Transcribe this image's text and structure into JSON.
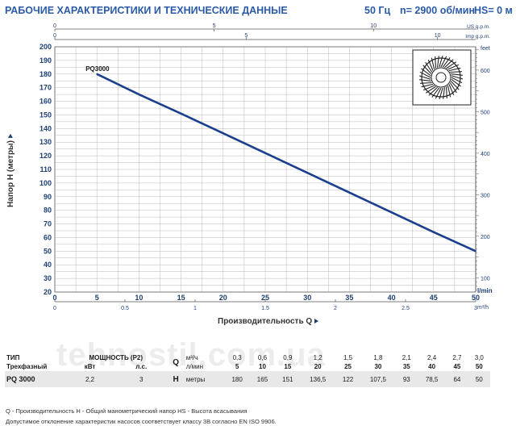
{
  "header": {
    "title": "РАБОЧИЕ ХАРАКТЕРИСТИКИ И ТЕХНИЧЕСКИЕ ДАННЫЕ",
    "freq": "50 Гц",
    "speed": "n= 2900 об/мин",
    "hs": "HS= 0 м"
  },
  "chart_data": {
    "type": "line",
    "series": [
      {
        "name": "PQ3000",
        "x": [
          5,
          10,
          15,
          20,
          25,
          30,
          35,
          40,
          45,
          50
        ],
        "y": [
          180,
          165,
          151,
          136.5,
          122,
          107.5,
          93,
          78.5,
          64,
          50
        ]
      }
    ],
    "xlabel": "Производительность Q",
    "ylabel": "Напор H (метры)",
    "xlim": [
      0,
      50
    ],
    "ylim": [
      20,
      200
    ],
    "x_ticks": [
      0,
      5,
      10,
      15,
      20,
      25,
      30,
      35,
      40,
      45,
      50
    ],
    "y_ticks": [
      20,
      30,
      40,
      50,
      60,
      70,
      80,
      90,
      100,
      110,
      120,
      130,
      140,
      150,
      160,
      170,
      180,
      190,
      200
    ],
    "bottom_units": "l/min",
    "m3h_units": "m³/h",
    "m3h_ticks": [
      0,
      0.5,
      1,
      1.5,
      2,
      2.5,
      3
    ],
    "us_units": "US g.p.m.",
    "us_ticks": [
      0,
      5,
      10
    ],
    "imp_units": "Imp g.p.m.",
    "imp_ticks": [
      0,
      5,
      10
    ],
    "feet_units": "feet",
    "feet_ticks": [
      100,
      200,
      300,
      400,
      500,
      600
    ],
    "grid": true,
    "curve_label": "PQ3000"
  },
  "table": {
    "tip": "ТИП",
    "power": "МОЩНОСТЬ (P2)",
    "phase": "Трехфазный",
    "kw": "кВт",
    "hp": "л.с.",
    "q_symbol": "Q",
    "m3h": "м³/ч",
    "lmin": "л/мин",
    "h_symbol": "H",
    "meters": "метры",
    "model": "PQ 3000",
    "kw_value": "2,2",
    "hp_value": "3",
    "m3h_values": [
      "0,3",
      "0,6",
      "0,9",
      "1,2",
      "1,5",
      "1,8",
      "2,1",
      "2,4",
      "2,7",
      "3,0"
    ],
    "lmin_values": [
      "5",
      "10",
      "15",
      "20",
      "25",
      "30",
      "35",
      "40",
      "45",
      "50"
    ],
    "h_values": [
      "180",
      "165",
      "151",
      "136,5",
      "122",
      "107,5",
      "93",
      "78,5",
      "64",
      "50"
    ]
  },
  "notes": {
    "line1": "Q - Производительность   H - Общий манометрический напор   HS - Высота всасывания",
    "line2": "Допустимое отклонение характеристик насосов соответствует классу 3В согласно EN ISO 9906."
  },
  "watermark": "tehnostil.com.ua",
  "colors": {
    "curve": "#1b3f8c",
    "grid": "#b8b8b8",
    "header": "#2a5aa8",
    "axis_text": "#1d3f74"
  }
}
